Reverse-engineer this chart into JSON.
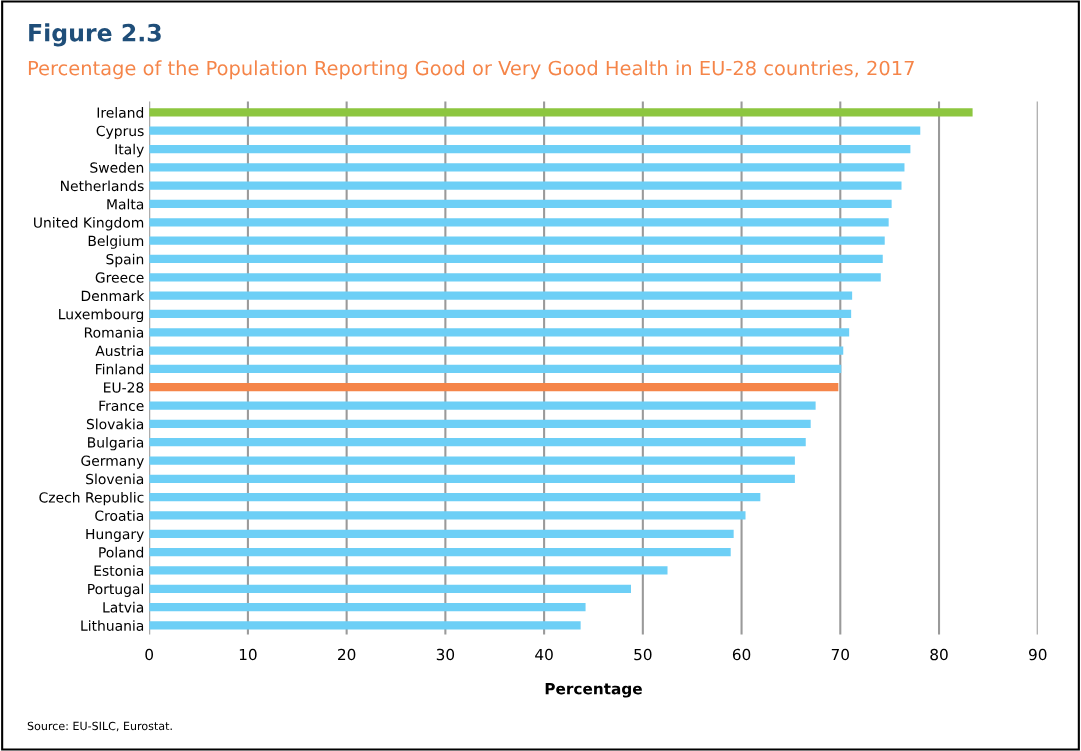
{
  "chart_data": {
    "type": "bar",
    "orientation": "horizontal",
    "title": "Figure 2.3",
    "subtitle": "Percentage of the Population Reporting Good or Very Good Health in EU-28 countries, 2017",
    "xlabel": "Percentage",
    "categories": [
      "Ireland",
      "Cyprus",
      "Italy",
      "Sweden",
      "Netherlands",
      "Malta",
      "United Kingdom",
      "Belgium",
      "Spain",
      "Greece",
      "Denmark",
      "Luxembourg",
      "Romania",
      "Austria",
      "Finland",
      "EU-28",
      "France",
      "Slovakia",
      "Bulgaria",
      "Germany",
      "Slovenia",
      "Czech Republic",
      "Croatia",
      "Hungary",
      "Poland",
      "Estonia",
      "Portugal",
      "Latvia",
      "Lithuania"
    ],
    "values": [
      83.4,
      78.1,
      77.1,
      76.5,
      76.2,
      75.2,
      74.9,
      74.5,
      74.3,
      74.1,
      71.2,
      71.1,
      70.9,
      70.3,
      70.1,
      69.8,
      67.5,
      67.0,
      66.5,
      65.4,
      65.4,
      61.9,
      60.4,
      59.2,
      58.9,
      52.5,
      48.8,
      44.2,
      43.7
    ],
    "colors": [
      "#8dc63f",
      "#6dcff6",
      "#6dcff6",
      "#6dcff6",
      "#6dcff6",
      "#6dcff6",
      "#6dcff6",
      "#6dcff6",
      "#6dcff6",
      "#6dcff6",
      "#6dcff6",
      "#6dcff6",
      "#6dcff6",
      "#6dcff6",
      "#6dcff6",
      "#f58549",
      "#6dcff6",
      "#6dcff6",
      "#6dcff6",
      "#6dcff6",
      "#6dcff6",
      "#6dcff6",
      "#6dcff6",
      "#6dcff6",
      "#6dcff6",
      "#6dcff6",
      "#6dcff6",
      "#6dcff6",
      "#6dcff6"
    ],
    "xlim": [
      0,
      90
    ],
    "xticks": [
      0,
      10,
      20,
      30,
      40,
      50,
      60,
      70,
      80,
      90
    ],
    "grid": "x",
    "annotations": [
      "Source: EU-SILC, Eurostat."
    ]
  }
}
